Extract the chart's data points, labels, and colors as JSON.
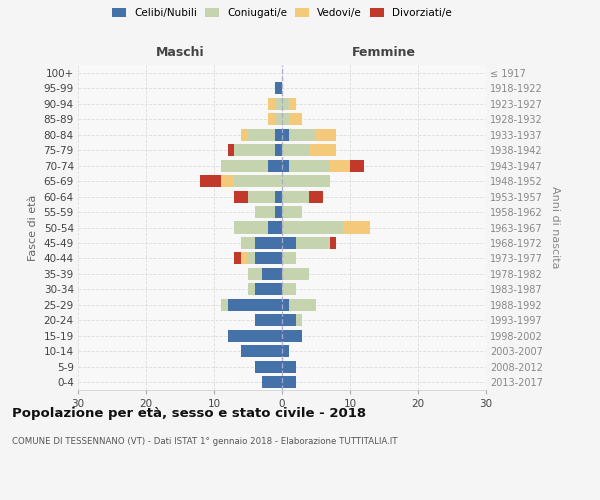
{
  "age_groups": [
    "100+",
    "95-99",
    "90-94",
    "85-89",
    "80-84",
    "75-79",
    "70-74",
    "65-69",
    "60-64",
    "55-59",
    "50-54",
    "45-49",
    "40-44",
    "35-39",
    "30-34",
    "25-29",
    "20-24",
    "15-19",
    "10-14",
    "5-9",
    "0-4"
  ],
  "birth_years": [
    "≤ 1917",
    "1918-1922",
    "1923-1927",
    "1928-1932",
    "1933-1937",
    "1938-1942",
    "1943-1947",
    "1948-1952",
    "1953-1957",
    "1958-1962",
    "1963-1967",
    "1968-1972",
    "1973-1977",
    "1978-1982",
    "1983-1987",
    "1988-1992",
    "1993-1997",
    "1998-2002",
    "2003-2007",
    "2008-2012",
    "2013-2017"
  ],
  "male_celibi": [
    0,
    1,
    0,
    0,
    1,
    1,
    2,
    0,
    1,
    1,
    2,
    4,
    4,
    3,
    4,
    8,
    4,
    8,
    6,
    4,
    3
  ],
  "male_coniugati": [
    0,
    0,
    1,
    1,
    4,
    6,
    7,
    7,
    4,
    3,
    5,
    2,
    1,
    2,
    1,
    1,
    0,
    0,
    0,
    0,
    0
  ],
  "male_vedovi": [
    0,
    0,
    1,
    1,
    1,
    0,
    0,
    2,
    0,
    0,
    0,
    0,
    1,
    0,
    0,
    0,
    0,
    0,
    0,
    0,
    0
  ],
  "male_divorziati": [
    0,
    0,
    0,
    0,
    0,
    1,
    0,
    3,
    2,
    0,
    0,
    0,
    1,
    0,
    0,
    0,
    0,
    0,
    0,
    0,
    0
  ],
  "female_nubili": [
    0,
    0,
    0,
    0,
    1,
    0,
    1,
    0,
    0,
    0,
    0,
    2,
    0,
    0,
    0,
    1,
    2,
    3,
    1,
    2,
    2
  ],
  "female_coniugate": [
    0,
    0,
    1,
    1,
    4,
    4,
    6,
    7,
    4,
    3,
    9,
    5,
    2,
    4,
    2,
    4,
    1,
    0,
    0,
    0,
    0
  ],
  "female_vedove": [
    0,
    0,
    1,
    2,
    3,
    4,
    3,
    0,
    0,
    0,
    4,
    0,
    0,
    0,
    0,
    0,
    0,
    0,
    0,
    0,
    0
  ],
  "female_divorziate": [
    0,
    0,
    0,
    0,
    0,
    0,
    2,
    0,
    2,
    0,
    0,
    1,
    0,
    0,
    0,
    0,
    0,
    0,
    0,
    0,
    0
  ],
  "color_celibi": "#4472a8",
  "color_coniugati": "#c5d4ae",
  "color_vedovi": "#f5c97a",
  "color_divorziati": "#c0392b",
  "xlim": 30,
  "title": "Popolazione per età, sesso e stato civile - 2018",
  "subtitle": "COMUNE DI TESSENNANO (VT) - Dati ISTAT 1° gennaio 2018 - Elaborazione TUTTITALIA.IT",
  "ylabel_left": "Fasce di età",
  "ylabel_right": "Anni di nascita",
  "xlabel_left": "Maschi",
  "xlabel_right": "Femmine"
}
